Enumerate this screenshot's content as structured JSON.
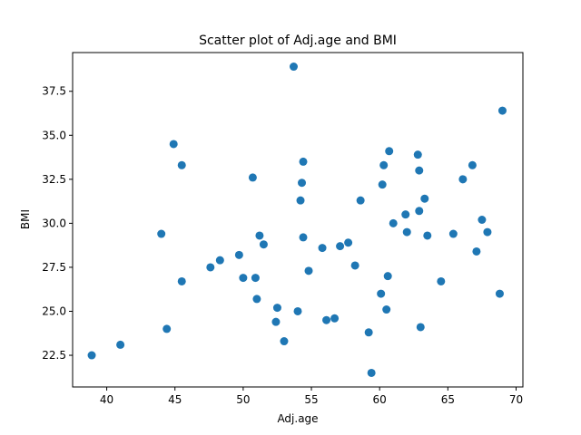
{
  "chart_data": {
    "type": "scatter",
    "title": "Scatter plot of Adj.age and BMI",
    "xlabel": "Adj.age",
    "ylabel": "BMI",
    "xlim": [
      37.5,
      70.5
    ],
    "ylim": [
      20.7,
      39.7
    ],
    "xticks": [
      40,
      45,
      50,
      55,
      60,
      65,
      70
    ],
    "yticks": [
      22.5,
      25.0,
      27.5,
      30.0,
      32.5,
      35.0,
      37.5
    ],
    "xtick_labels": [
      "40",
      "45",
      "50",
      "55",
      "60",
      "65",
      "70"
    ],
    "ytick_labels": [
      "22.5",
      "25.0",
      "27.5",
      "30.0",
      "32.5",
      "35.0",
      "37.5"
    ],
    "grid": false,
    "marker_color": "#1f77b4",
    "points": [
      [
        38.9,
        22.5
      ],
      [
        41.0,
        23.1
      ],
      [
        44.0,
        29.4
      ],
      [
        44.4,
        24.0
      ],
      [
        44.9,
        34.5
      ],
      [
        45.5,
        33.3
      ],
      [
        45.5,
        26.7
      ],
      [
        47.6,
        27.5
      ],
      [
        48.3,
        27.9
      ],
      [
        49.7,
        28.2
      ],
      [
        50.0,
        26.9
      ],
      [
        50.7,
        32.6
      ],
      [
        50.9,
        26.9
      ],
      [
        51.0,
        25.7
      ],
      [
        51.2,
        29.3
      ],
      [
        51.5,
        28.8
      ],
      [
        52.4,
        24.4
      ],
      [
        52.5,
        25.2
      ],
      [
        53.0,
        23.3
      ],
      [
        53.7,
        38.9
      ],
      [
        54.0,
        25.0
      ],
      [
        54.2,
        31.3
      ],
      [
        54.3,
        32.3
      ],
      [
        54.4,
        33.5
      ],
      [
        54.4,
        29.2
      ],
      [
        54.8,
        27.3
      ],
      [
        55.8,
        28.6
      ],
      [
        56.1,
        24.5
      ],
      [
        56.7,
        24.6
      ],
      [
        57.1,
        28.7
      ],
      [
        57.7,
        28.9
      ],
      [
        58.2,
        27.6
      ],
      [
        58.6,
        31.3
      ],
      [
        59.2,
        23.8
      ],
      [
        59.4,
        21.5
      ],
      [
        60.1,
        26.0
      ],
      [
        60.2,
        32.2
      ],
      [
        60.3,
        33.3
      ],
      [
        60.5,
        25.1
      ],
      [
        60.6,
        27.0
      ],
      [
        60.7,
        34.1
      ],
      [
        61.0,
        30.0
      ],
      [
        61.9,
        30.5
      ],
      [
        62.0,
        29.5
      ],
      [
        62.8,
        33.9
      ],
      [
        62.9,
        33.0
      ],
      [
        62.9,
        30.7
      ],
      [
        63.0,
        24.1
      ],
      [
        63.3,
        31.4
      ],
      [
        63.5,
        29.3
      ],
      [
        64.5,
        26.7
      ],
      [
        65.4,
        29.4
      ],
      [
        66.1,
        32.5
      ],
      [
        66.8,
        33.3
      ],
      [
        67.1,
        28.4
      ],
      [
        67.5,
        30.2
      ],
      [
        67.9,
        29.5
      ],
      [
        68.8,
        26.0
      ],
      [
        69.0,
        36.4
      ]
    ]
  }
}
